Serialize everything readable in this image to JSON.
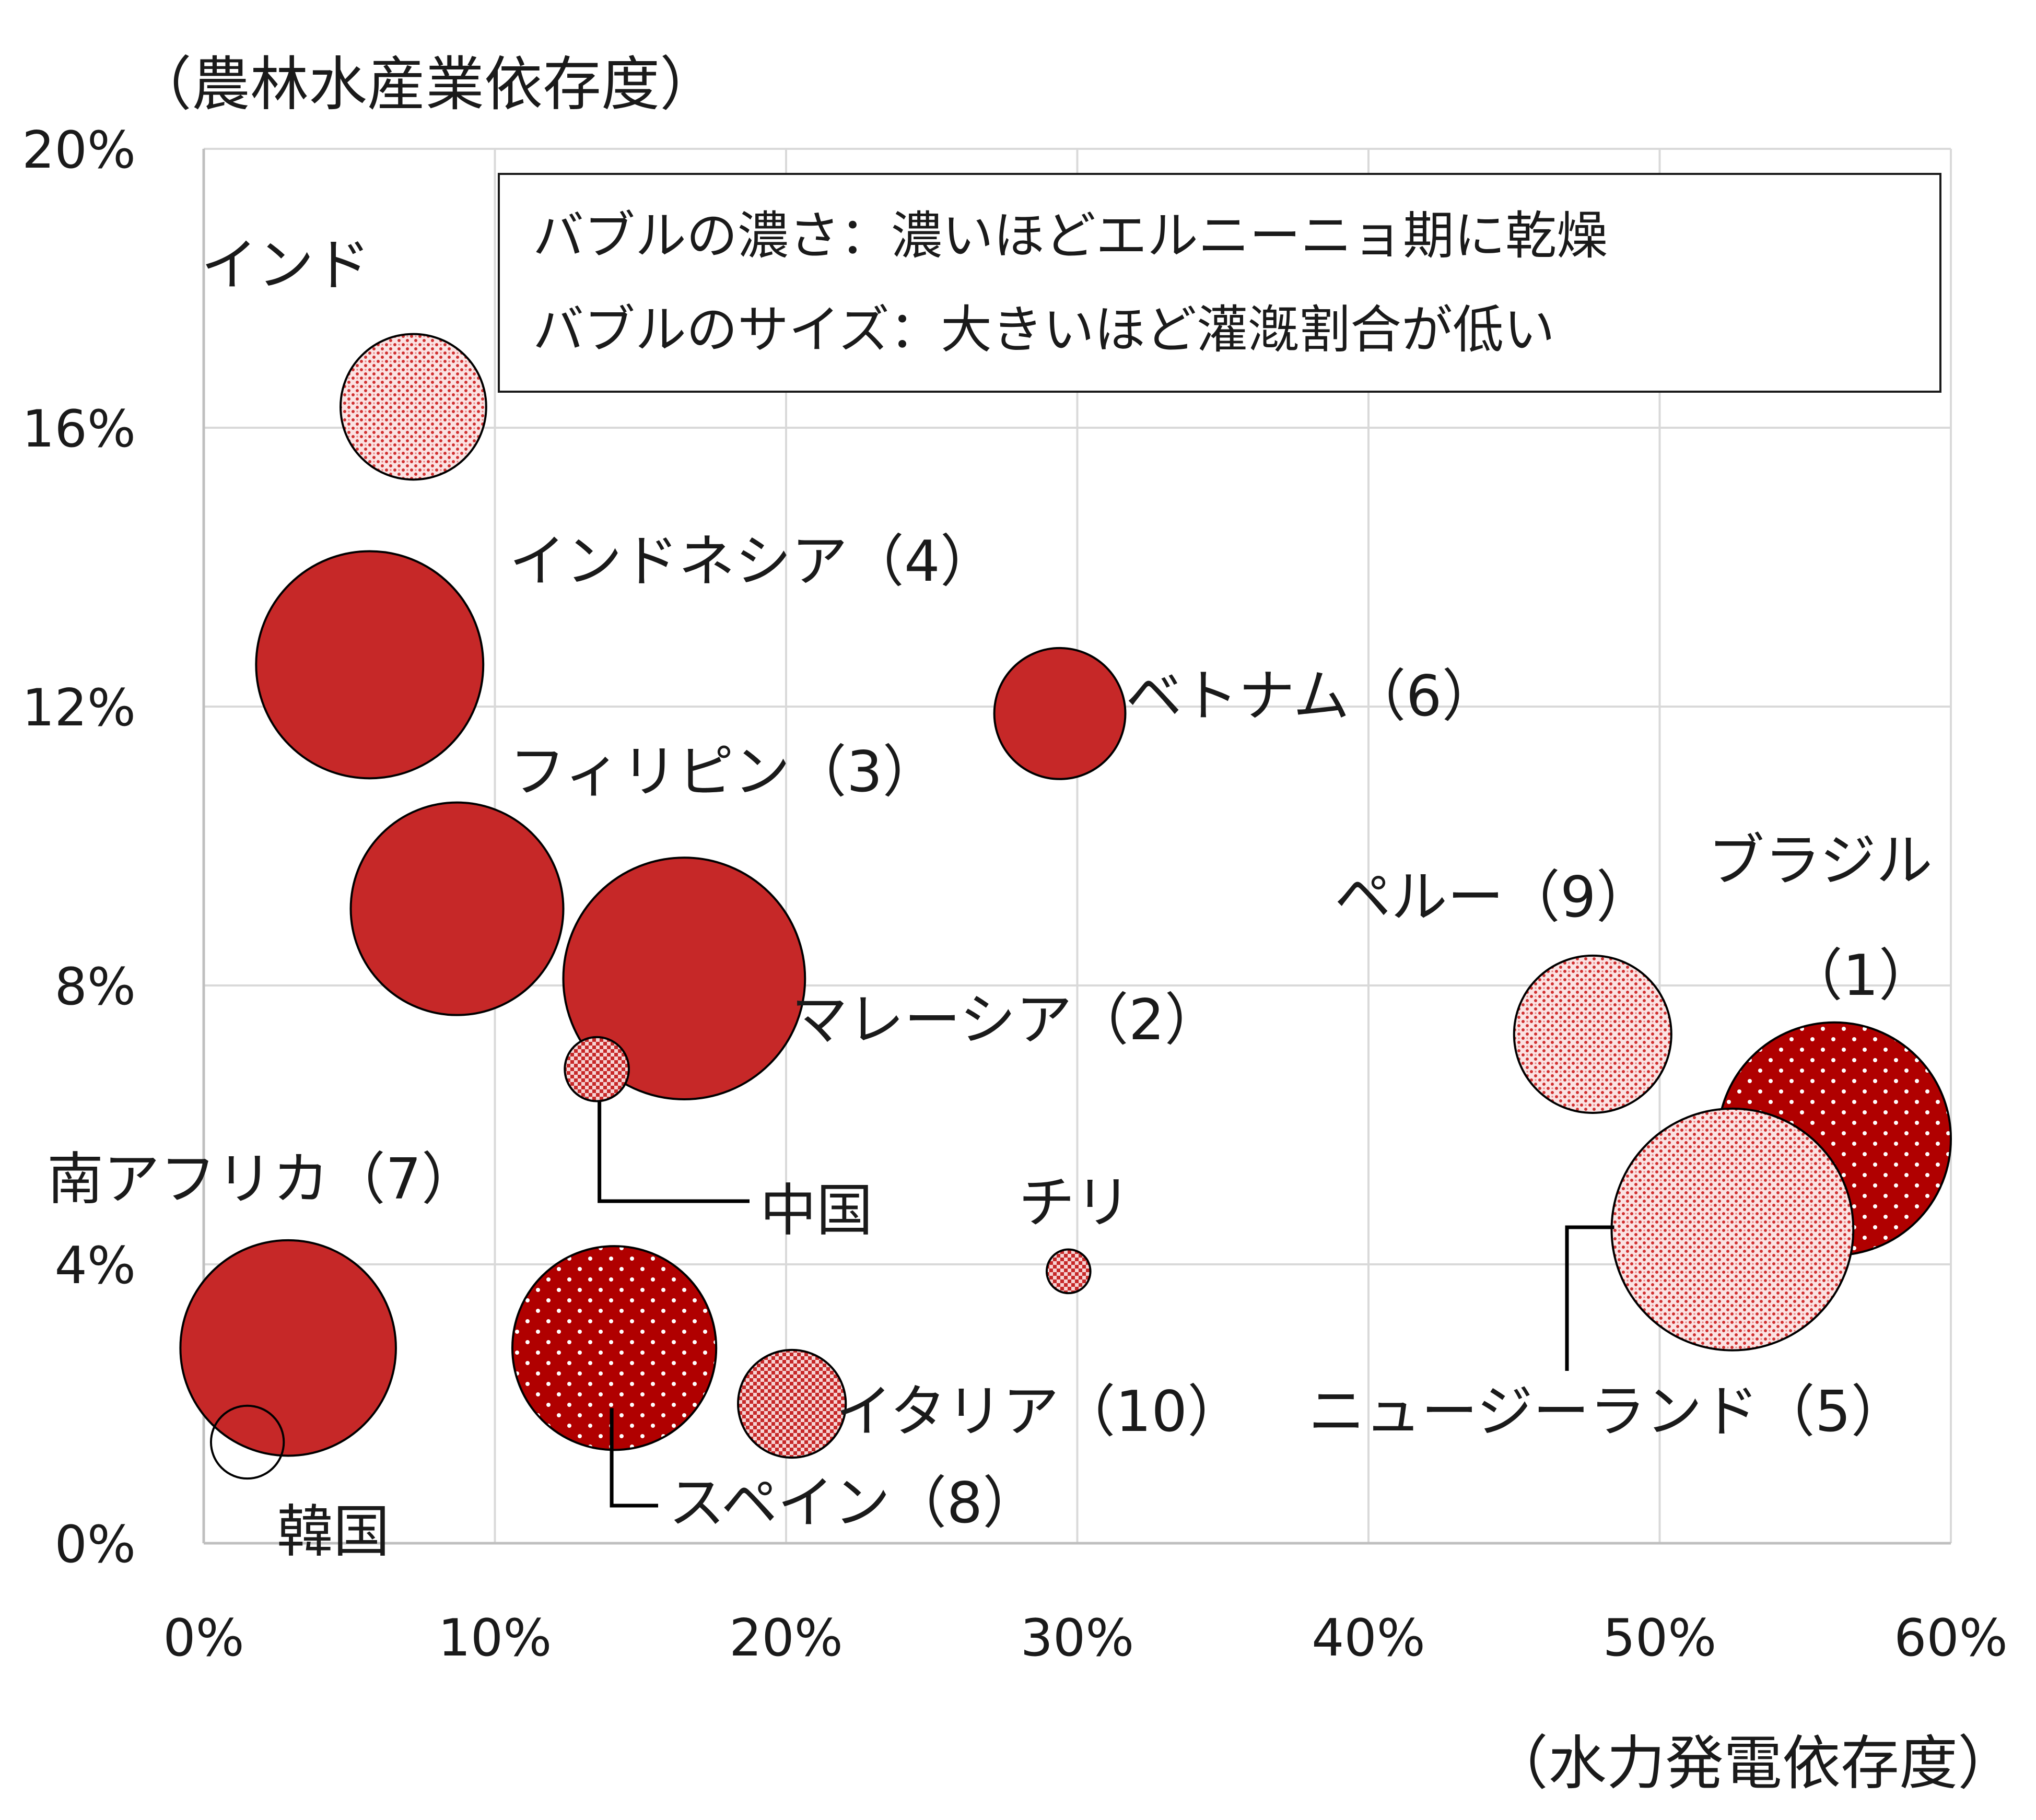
{
  "chart_data": {
    "type": "bubble",
    "title": "",
    "xlabel": "（水力発電依存度）",
    "ylabel": "（農林水産業依存度）",
    "xlim": [
      0,
      60
    ],
    "ylim": [
      0,
      20
    ],
    "x_ticks": [
      "0%",
      "10%",
      "20%",
      "30%",
      "40%",
      "50%",
      "60%"
    ],
    "y_ticks": [
      "0%",
      "4%",
      "8%",
      "12%",
      "16%",
      "20%"
    ],
    "grid": true,
    "legend": {
      "position": "top-right",
      "lines": [
        "バブルの濃さ：濃いほどエルニーニョ期に乾燥",
        "バブルのサイズ：大きいほど灌漑割合が低い"
      ]
    },
    "colors": {
      "solid": "#c62828",
      "dense": "#b00000",
      "medium": "#cc3a3a",
      "light": "#e05a5a",
      "grid": "#d9d9d9"
    },
    "points": [
      {
        "label": "インド",
        "x": 7.2,
        "y": 16.3,
        "size": 2.5,
        "fill": "light"
      },
      {
        "label": "インドネシア（4）",
        "x": 5.7,
        "y": 12.6,
        "size": 3.9,
        "fill": "solid"
      },
      {
        "label": "ベトナム（6）",
        "x": 29.4,
        "y": 11.9,
        "size": 2.25,
        "fill": "solid"
      },
      {
        "label": "フィリピン（3）",
        "x": 8.7,
        "y": 9.1,
        "size": 3.65,
        "fill": "solid"
      },
      {
        "label": "マレーシア（2）",
        "x": 16.5,
        "y": 8.1,
        "size": 4.15,
        "fill": "solid"
      },
      {
        "label": "中国",
        "x": 13.5,
        "y": 6.8,
        "size": 1.1,
        "fill": "medium"
      },
      {
        "label": "チリ",
        "x": 29.7,
        "y": 3.9,
        "size": 0.75,
        "fill": "medium"
      },
      {
        "label": "南アフリカ（7）",
        "x": 2.9,
        "y": 2.8,
        "size": 3.7,
        "fill": "solid"
      },
      {
        "label": "韓国",
        "x": 1.5,
        "y": 1.45,
        "size": 1.25,
        "fill": "none"
      },
      {
        "label": "スペイン（8）",
        "x": 14.1,
        "y": 2.8,
        "size": 3.5,
        "fill": "dense"
      },
      {
        "label": "イタリア（10）",
        "x": 20.2,
        "y": 2.0,
        "size": 1.85,
        "fill": "medium"
      },
      {
        "label": "ペルー（9）",
        "x": 47.7,
        "y": 7.3,
        "size": 2.7,
        "fill": "light"
      },
      {
        "label": "ブラジル（1）",
        "x": 56.0,
        "y": 5.8,
        "size": 4.0,
        "fill": "dense"
      },
      {
        "label": "ニュージーランド（5）",
        "x": 52.5,
        "y": 4.5,
        "size": 4.15,
        "fill": "light"
      }
    ],
    "annotations": [
      {
        "text": "インド",
        "for": "インド"
      },
      {
        "text": "インドネシア（4）",
        "for": "インドネシア（4）"
      },
      {
        "text": "ベトナム（6）",
        "for": "ベトナム（6）"
      },
      {
        "text": "フィリピン（3）",
        "for": "フィリピン（3）"
      },
      {
        "text": "マレーシア（2）",
        "for": "マレーシア（2）"
      },
      {
        "text": "中国",
        "for": "中国"
      },
      {
        "text": "チリ",
        "for": "チリ"
      },
      {
        "text": "南アフリカ（7）",
        "for": "南アフリカ（7）"
      },
      {
        "text": "韓国",
        "for": "韓国"
      },
      {
        "text": "スペイン（8）",
        "for": "スペイン（8）"
      },
      {
        "text": "イタリア（10）",
        "for": "イタリア（10）"
      },
      {
        "text": "ペルー（9）",
        "for": "ペルー（9）"
      },
      {
        "text": "ブラジル",
        "for": "ブラジル（1）"
      },
      {
        "text": "（1）",
        "for": "ブラジル（1）"
      },
      {
        "text": "ニュージーランド（5）",
        "for": "ニュージーランド（5）"
      }
    ]
  }
}
